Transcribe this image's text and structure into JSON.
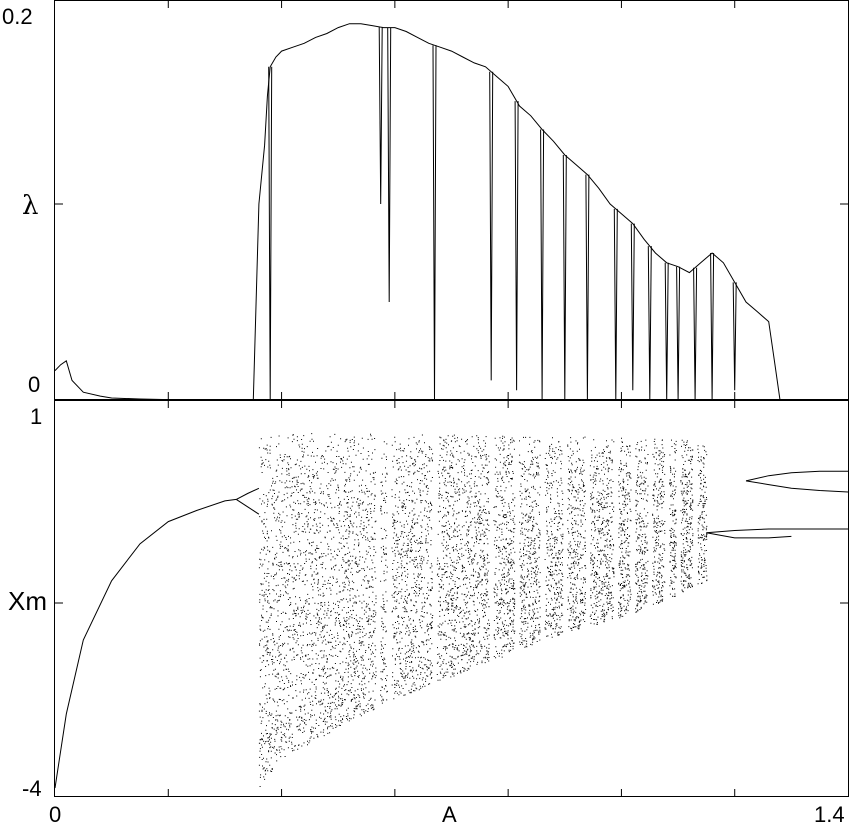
{
  "chart_data": [
    {
      "type": "line",
      "panel": "top",
      "title": "",
      "xlabel": "",
      "ylabel": "λ",
      "xlim": [
        0,
        1.4
      ],
      "ylim": [
        0,
        0.2
      ],
      "y_tick_labels": [
        "0.2",
        "0"
      ],
      "grid": false,
      "series": [
        {
          "x": [
            0.0,
            0.01,
            0.02,
            0.03,
            0.05,
            0.08,
            0.1,
            0.15,
            0.2,
            0.25,
            0.3,
            0.35,
            0.36,
            0.37,
            0.375,
            0.38,
            0.39,
            0.4,
            0.42,
            0.44,
            0.46,
            0.48,
            0.5,
            0.52,
            0.54,
            0.56,
            0.58,
            0.6,
            0.62,
            0.64,
            0.66,
            0.68,
            0.7,
            0.72,
            0.74,
            0.76,
            0.78,
            0.8,
            0.82,
            0.84,
            0.86,
            0.88,
            0.9,
            0.92,
            0.94,
            0.96,
            0.98,
            1.0,
            1.02,
            1.04,
            1.06,
            1.08,
            1.1,
            1.12,
            1.14,
            1.16,
            1.18,
            1.2,
            1.22,
            1.24,
            1.26,
            1.27,
            1.28,
            1.4
          ],
          "y": [
            0.015,
            0.018,
            0.02,
            0.01,
            0.004,
            0.002,
            0.001,
            0.0005,
            0.0002,
            0.0002,
            0.0002,
            0.0,
            0.1,
            0.13,
            0.155,
            0.17,
            0.175,
            0.178,
            0.18,
            0.182,
            0.185,
            0.187,
            0.19,
            0.192,
            0.192,
            0.191,
            0.19,
            0.19,
            0.188,
            0.185,
            0.182,
            0.18,
            0.178,
            0.175,
            0.172,
            0.17,
            0.165,
            0.16,
            0.15,
            0.145,
            0.138,
            0.132,
            0.125,
            0.12,
            0.115,
            0.108,
            0.1,
            0.095,
            0.09,
            0.082,
            0.075,
            0.07,
            0.068,
            0.065,
            0.07,
            0.075,
            0.07,
            0.06,
            0.05,
            0.045,
            0.04,
            0.02,
            0.0,
            0.0
          ]
        }
      ],
      "dips": [
        {
          "x": 0.38,
          "y": 0.0
        },
        {
          "x": 0.575,
          "y": 0.1
        },
        {
          "x": 0.59,
          "y": 0.05
        },
        {
          "x": 0.67,
          "y": 0.0
        },
        {
          "x": 0.77,
          "y": 0.01
        },
        {
          "x": 0.815,
          "y": 0.005
        },
        {
          "x": 0.86,
          "y": 0.0
        },
        {
          "x": 0.9,
          "y": 0.0
        },
        {
          "x": 0.94,
          "y": 0.0
        },
        {
          "x": 0.99,
          "y": 0.0
        },
        {
          "x": 1.02,
          "y": 0.005
        },
        {
          "x": 1.05,
          "y": 0.0
        },
        {
          "x": 1.08,
          "y": 0.0
        },
        {
          "x": 1.1,
          "y": 0.0
        },
        {
          "x": 1.13,
          "y": 0.0
        },
        {
          "x": 1.16,
          "y": 0.0
        },
        {
          "x": 1.2,
          "y": 0.005
        }
      ]
    },
    {
      "type": "scatter",
      "panel": "bottom",
      "title": "",
      "xlabel": "A",
      "ylabel": "Xm",
      "xlim": [
        0,
        1.4
      ],
      "ylim": [
        -4,
        1
      ],
      "x_tick_labels": [
        "0",
        "1.4"
      ],
      "y_tick_labels": [
        "1",
        "-4"
      ],
      "grid": false,
      "branches": [
        {
          "x": [
            0.0,
            0.02,
            0.05,
            0.1,
            0.15,
            0.2,
            0.25,
            0.3,
            0.32
          ],
          "y": [
            -4.0,
            -3.0,
            -2.0,
            -1.2,
            -0.7,
            -0.4,
            -0.25,
            -0.12,
            -0.1
          ]
        },
        {
          "x": [
            0.32,
            0.34,
            0.36
          ],
          "y": [
            -0.1,
            -0.02,
            0.05
          ]
        },
        {
          "x": [
            0.32,
            0.34,
            0.36
          ],
          "y": [
            -0.1,
            -0.2,
            -0.3
          ]
        },
        {
          "x": [
            1.22,
            1.26,
            1.3,
            1.35,
            1.4
          ],
          "y": [
            0.15,
            0.1,
            0.05,
            0.02,
            0.0
          ]
        },
        {
          "x": [
            1.22,
            1.26,
            1.3,
            1.35,
            1.4
          ],
          "y": [
            0.15,
            0.22,
            0.26,
            0.28,
            0.28
          ]
        },
        {
          "x": [
            1.15,
            1.2,
            1.26,
            1.32,
            1.38,
            1.4
          ],
          "y": [
            -0.55,
            -0.52,
            -0.5,
            -0.5,
            -0.5,
            -0.5
          ]
        },
        {
          "x": [
            1.15,
            1.2,
            1.26,
            1.3
          ],
          "y": [
            -0.55,
            -0.62,
            -0.62,
            -0.6
          ]
        }
      ],
      "chaotic_band": {
        "x": [
          0.36,
          0.4,
          0.5,
          0.6,
          0.7,
          0.8,
          0.9,
          1.0,
          1.1,
          1.15
        ],
        "y_upper": [
          0.8,
          0.8,
          0.79,
          0.78,
          0.77,
          0.76,
          0.75,
          0.73,
          0.71,
          0.7
        ],
        "y_lower": [
          -4.0,
          -3.6,
          -3.2,
          -2.8,
          -2.5,
          -2.2,
          -1.9,
          -1.7,
          -1.4,
          -1.2
        ]
      },
      "windows": [
        0.57,
        0.59,
        0.67,
        0.77,
        0.815,
        0.86,
        0.9,
        0.94,
        0.99,
        1.02,
        1.05,
        1.08,
        1.1,
        1.13,
        1.16,
        1.2
      ]
    }
  ]
}
